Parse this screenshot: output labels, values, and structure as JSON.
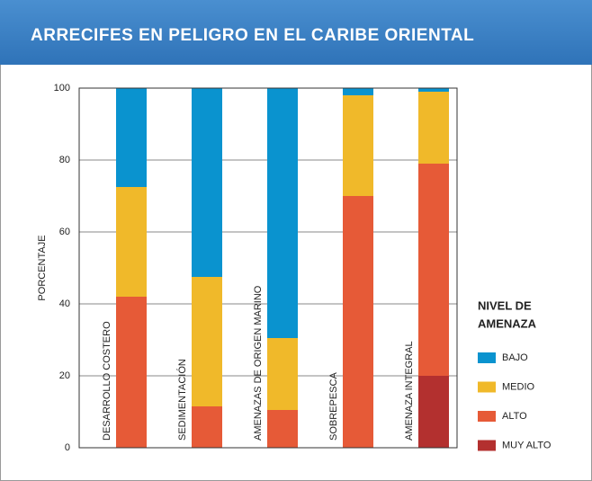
{
  "chart_data": {
    "type": "stacked_bar",
    "title": "ARRECIFES EN PELIGRO EN EL CARIBE ORIENTAL",
    "y_label": "PORCENTAJE",
    "categories": [
      "DESARROLLO COSTERO",
      "SEDIMENTACIÓN",
      "AMENAZAS DE ORIGEN MARINO",
      "SOBREPESCA",
      "AMENAZA INTEGRAL"
    ],
    "legend_title": [
      "NIVEL DE",
      "AMENAZA"
    ],
    "series": [
      {
        "name": "BAJO",
        "color": "#0a93cf",
        "values": [
          27.5,
          52.5,
          69.5,
          2,
          1
        ]
      },
      {
        "name": "MEDIO",
        "color": "#f0b92a",
        "values": [
          30.5,
          36,
          20,
          28,
          20
        ]
      },
      {
        "name": "ALTO",
        "color": "#e65a37",
        "values": [
          42,
          11.5,
          10.5,
          70,
          59
        ]
      },
      {
        "name": "MUY ALTO",
        "color": "#b3302f",
        "values": [
          0,
          0,
          0,
          0,
          20
        ]
      }
    ],
    "ylim": [
      0,
      100
    ],
    "yticks": [
      0,
      20,
      40,
      60,
      80,
      100
    ],
    "grid": true
  }
}
